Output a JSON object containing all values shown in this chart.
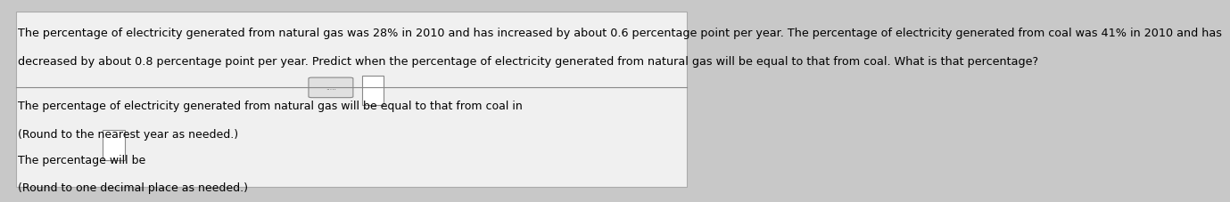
{
  "background_color": "#c8c8c8",
  "panel_color": "#f0f0f0",
  "text_color": "#000000",
  "paragraph1": "The percentage of electricity generated from natural gas was 28% in 2010 and has increased by about 0.6 percentage point per year. The percentage of electricity generated from coal was 41% in 2010 and has",
  "paragraph1b": "decreased by about 0.8 percentage point per year. Predict when the percentage of electricity generated from natural gas will be equal to that from coal. What is that percentage?",
  "divider_dots": ".....",
  "line1a": "The percentage of electricity generated from natural gas will be equal to that from coal in ",
  "line1b": "(Round to the nearest year as needed.)",
  "line2a": "The percentage will be ",
  "line2b": "(Round to one decimal place as needed.)",
  "font_size_main": 9.2,
  "font_size_body": 9.0
}
